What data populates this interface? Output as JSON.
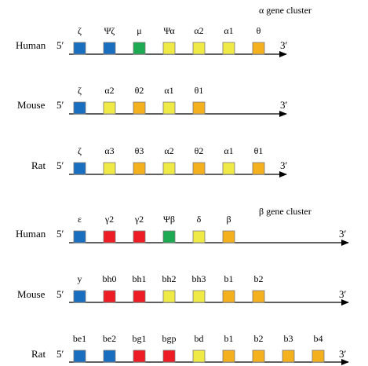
{
  "colors": {
    "blue": "#1a6ec0",
    "yellow": "#f0ea46",
    "orange": "#f5b11d",
    "green": "#1daa52",
    "red": "#ee1c24",
    "outline": "#7a7a7a",
    "axis": "#000000"
  },
  "panels": [
    {
      "title": "α gene cluster",
      "rows": [
        {
          "species": "Human",
          "five_prime": "5′",
          "three_prime": "3′",
          "genes": [
            {
              "label": "ζ",
              "color": "blue"
            },
            {
              "label": "Ψζ",
              "color": "blue"
            },
            {
              "label": "μ",
              "color": "green"
            },
            {
              "label": "Ψα",
              "color": "yellow"
            },
            {
              "label": "α2",
              "color": "yellow"
            },
            {
              "label": "α1",
              "color": "yellow"
            },
            {
              "label": "θ",
              "color": "orange"
            }
          ]
        },
        {
          "species": "Mouse",
          "five_prime": "5′",
          "three_prime": "3′",
          "genes": [
            {
              "label": "ζ",
              "color": "blue"
            },
            {
              "label": "α2",
              "color": "yellow"
            },
            {
              "label": "θ2",
              "color": "orange"
            },
            {
              "label": "α1",
              "color": "yellow"
            },
            {
              "label": "θ1",
              "color": "orange"
            }
          ]
        },
        {
          "species": "Rat",
          "five_prime": "5′",
          "three_prime": "3′",
          "genes": [
            {
              "label": "ζ",
              "color": "blue"
            },
            {
              "label": "α3",
              "color": "yellow"
            },
            {
              "label": "θ3",
              "color": "orange"
            },
            {
              "label": "α2",
              "color": "yellow"
            },
            {
              "label": "θ2",
              "color": "orange"
            },
            {
              "label": "α1",
              "color": "yellow"
            },
            {
              "label": "θ1",
              "color": "orange"
            }
          ]
        }
      ]
    },
    {
      "title": "β gene cluster",
      "rows": [
        {
          "species": "Human",
          "five_prime": "5′",
          "three_prime": "3′",
          "genes": [
            {
              "label": "ε",
              "color": "blue"
            },
            {
              "label": "γ2",
              "color": "red"
            },
            {
              "label": "γ2",
              "color": "red"
            },
            {
              "label": "Ψβ",
              "color": "green"
            },
            {
              "label": "δ",
              "color": "yellow"
            },
            {
              "label": "β",
              "color": "orange"
            }
          ]
        },
        {
          "species": "Mouse",
          "five_prime": "5′",
          "three_prime": "3′",
          "genes": [
            {
              "label": "y",
              "color": "blue"
            },
            {
              "label": "bh0",
              "color": "red"
            },
            {
              "label": "bh1",
              "color": "red"
            },
            {
              "label": "bh2",
              "color": "yellow"
            },
            {
              "label": "bh3",
              "color": "yellow"
            },
            {
              "label": "b1",
              "color": "orange"
            },
            {
              "label": "b2",
              "color": "orange"
            }
          ]
        },
        {
          "species": "Rat",
          "five_prime": "5′",
          "three_prime": "3′",
          "genes": [
            {
              "label": "be1",
              "color": "blue"
            },
            {
              "label": "be2",
              "color": "blue"
            },
            {
              "label": "bg1",
              "color": "red"
            },
            {
              "label": "bgp",
              "color": "red"
            },
            {
              "label": "bd",
              "color": "yellow"
            },
            {
              "label": "b1",
              "color": "orange"
            },
            {
              "label": "b2",
              "color": "orange"
            },
            {
              "label": "b3",
              "color": "orange"
            },
            {
              "label": "b4",
              "color": "orange"
            }
          ]
        }
      ]
    }
  ]
}
